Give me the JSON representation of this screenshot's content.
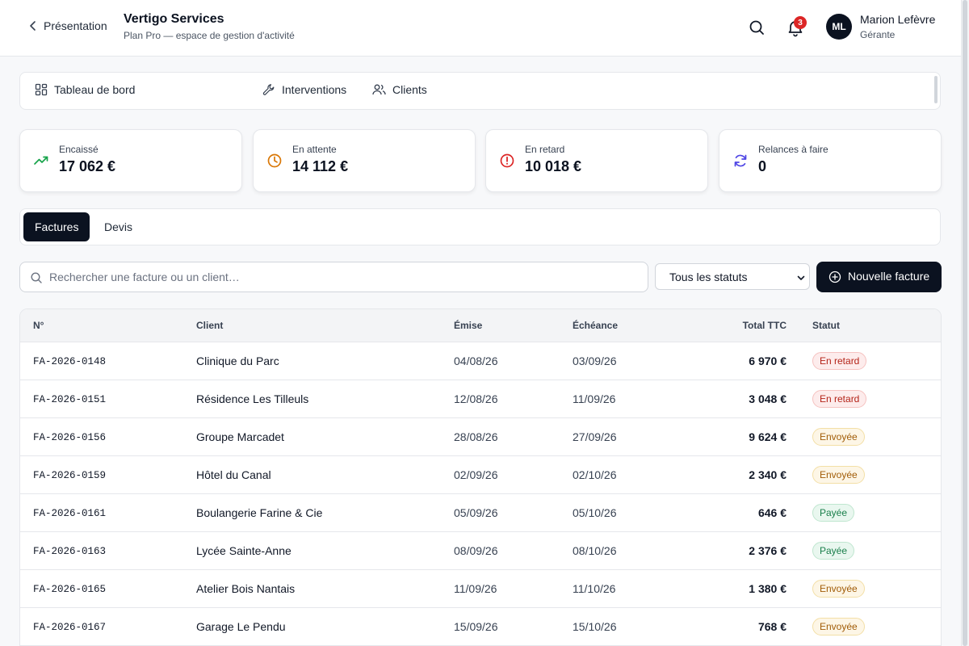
{
  "header": {
    "back_label": "Présentation",
    "title": "Vertigo Services",
    "subtitle": "Plan Pro — espace de gestion d'activité",
    "notifications_count": "3",
    "user": {
      "initials": "ML",
      "name": "Marion Lefèvre",
      "role": "Gérante"
    }
  },
  "nav": {
    "items": [
      {
        "label": "Tableau de bord",
        "icon": "dashboard-icon"
      },
      {
        "label": "Interventions",
        "icon": "wrench-icon"
      },
      {
        "label": "Clients",
        "icon": "users-icon"
      }
    ]
  },
  "stats": [
    {
      "label": "Encaissé",
      "value": "17 062 €",
      "icon": "trending-up-icon",
      "color": "#16a34a"
    },
    {
      "label": "En attente",
      "value": "14 112 €",
      "icon": "clock-icon",
      "color": "#d97706"
    },
    {
      "label": "En retard",
      "value": "10 018 €",
      "icon": "alert-circle-icon",
      "color": "#dc2626"
    },
    {
      "label": "Relances à faire",
      "value": "0",
      "icon": "refresh-icon",
      "color": "#4f46e5"
    }
  ],
  "tabs": [
    {
      "label": "Factures",
      "active": true
    },
    {
      "label": "Devis",
      "active": false
    }
  ],
  "toolbar": {
    "search_placeholder": "Rechercher une facture ou un client…",
    "status_filter": "Tous les statuts",
    "new_invoice_label": "Nouvelle facture"
  },
  "table": {
    "columns": [
      "N°",
      "Client",
      "Émise",
      "Échéance",
      "Total TTC",
      "Statut"
    ],
    "rows": [
      {
        "num": "FA-2026-0148",
        "client": "Clinique du Parc",
        "issued": "04/08/26",
        "due": "03/09/26",
        "total": "6 970 €",
        "status": "En retard",
        "status_type": "late"
      },
      {
        "num": "FA-2026-0151",
        "client": "Résidence Les Tilleuls",
        "issued": "12/08/26",
        "due": "11/09/26",
        "total": "3 048 €",
        "status": "En retard",
        "status_type": "late"
      },
      {
        "num": "FA-2026-0156",
        "client": "Groupe Marcadet",
        "issued": "28/08/26",
        "due": "27/09/26",
        "total": "9 624 €",
        "status": "Envoyée",
        "status_type": "sent"
      },
      {
        "num": "FA-2026-0159",
        "client": "Hôtel du Canal",
        "issued": "02/09/26",
        "due": "02/10/26",
        "total": "2 340 €",
        "status": "Envoyée",
        "status_type": "sent"
      },
      {
        "num": "FA-2026-0161",
        "client": "Boulangerie Farine & Cie",
        "issued": "05/09/26",
        "due": "05/10/26",
        "total": "646 €",
        "status": "Payée",
        "status_type": "paid"
      },
      {
        "num": "FA-2026-0163",
        "client": "Lycée Sainte-Anne",
        "issued": "08/09/26",
        "due": "08/10/26",
        "total": "2 376 €",
        "status": "Payée",
        "status_type": "paid"
      },
      {
        "num": "FA-2026-0165",
        "client": "Atelier Bois Nantais",
        "issued": "11/09/26",
        "due": "11/10/26",
        "total": "1 380 €",
        "status": "Envoyée",
        "status_type": "sent"
      },
      {
        "num": "FA-2026-0167",
        "client": "Garage Le Pendu",
        "issued": "15/09/26",
        "due": "15/10/26",
        "total": "768 €",
        "status": "Envoyée",
        "status_type": "sent"
      }
    ]
  }
}
